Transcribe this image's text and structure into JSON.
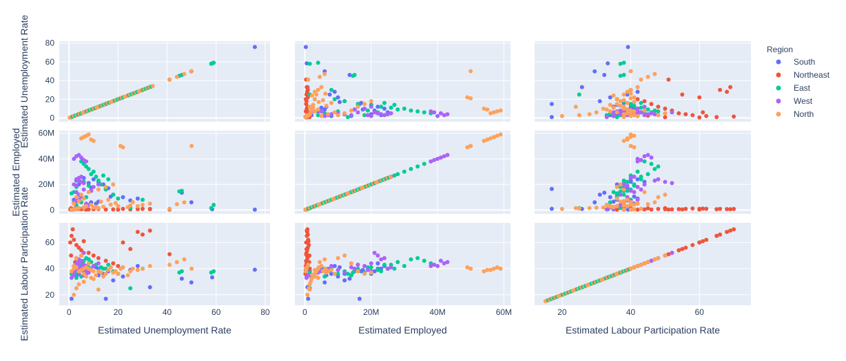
{
  "chart_data": {
    "type": "scatter",
    "subtype": "scatter-matrix",
    "dimensions": [
      "Estimated Unemployment Rate",
      "Estimated Employed",
      "Estimated Labour Participation Rate"
    ],
    "axis_ranges": [
      [
        -4,
        82
      ],
      [
        -3000000,
        62000000
      ],
      [
        12,
        75
      ]
    ],
    "axis_ticks": [
      {
        "values": [
          0,
          20,
          40,
          60,
          80
        ],
        "labels": [
          "0",
          "20",
          "40",
          "60",
          "80"
        ]
      },
      {
        "values": [
          0,
          20000000,
          40000000,
          60000000
        ],
        "labels": [
          "0",
          "20M",
          "40M",
          "60M"
        ]
      },
      {
        "values": [
          20,
          40,
          60
        ],
        "labels": [
          "20",
          "40",
          "60"
        ]
      }
    ],
    "grid": true,
    "legend": {
      "title": "Region",
      "placement": "right"
    },
    "series": [
      {
        "name": "South",
        "color": "#636efa",
        "points": [
          [
            75.8,
            300000.0,
            39.2
          ],
          [
            58.4,
            600000.0,
            33.3
          ],
          [
            49.9,
            6000000.0,
            29.5
          ],
          [
            46,
            13500000.0,
            32.3
          ],
          [
            33,
            800000.0,
            25.8
          ],
          [
            22,
            10000000.0,
            34
          ],
          [
            18,
            12000000.0,
            31
          ],
          [
            16,
            17000000.0,
            38
          ],
          [
            14,
            20000000.0,
            36
          ],
          [
            12,
            22000000.0,
            40
          ],
          [
            10,
            24000000.0,
            42
          ],
          [
            8,
            21000000.0,
            38
          ],
          [
            6,
            25000000.0,
            40
          ],
          [
            5,
            22000000.0,
            44
          ],
          [
            4,
            20000000.0,
            38
          ],
          [
            3,
            23000000.0,
            40
          ],
          [
            2,
            8000000.0,
            36
          ],
          [
            1,
            1000000.0,
            17
          ],
          [
            2,
            500000.0,
            35
          ],
          [
            3,
            2000000.0,
            34
          ],
          [
            7,
            4000000.0,
            37
          ],
          [
            9,
            6000000.0,
            40
          ],
          [
            11,
            5000000.0,
            41
          ],
          [
            15,
            16500000.0,
            17
          ],
          [
            20,
            3000000.0,
            36
          ],
          [
            25,
            7500000.0,
            39
          ],
          [
            28,
            9000000.0,
            42
          ],
          [
            6,
            1500000.0,
            38
          ],
          [
            4,
            12000000.0,
            36
          ],
          [
            9,
            17500000.0,
            39
          ],
          [
            12,
            6500000.0,
            35
          ],
          [
            17,
            10500000.0,
            41
          ]
        ]
      },
      {
        "name": "Northeast",
        "color": "#ef553b",
        "points": [
          [
            0.5,
            400000.0,
            60
          ],
          [
            1,
            600000.0,
            65
          ],
          [
            1.5,
            800000.0,
            70
          ],
          [
            2,
            1000000.0,
            62
          ],
          [
            3,
            1200000.0,
            58
          ],
          [
            4,
            900000.0,
            56
          ],
          [
            5,
            700000.0,
            54
          ],
          [
            6,
            1100000.0,
            61
          ],
          [
            8,
            500000.0,
            52
          ],
          [
            10,
            600000.0,
            50
          ],
          [
            12,
            800000.0,
            48
          ],
          [
            15,
            400000.0,
            46
          ],
          [
            20,
            300000.0,
            42
          ],
          [
            25,
            500000.0,
            55
          ],
          [
            28,
            700000.0,
            68
          ],
          [
            30,
            900000.0,
            66
          ],
          [
            33,
            600000.0,
            69
          ],
          [
            41,
            400000.0,
            51
          ],
          [
            2.5,
            1300000.0,
            45
          ],
          [
            3.5,
            1500000.0,
            40
          ],
          [
            7,
            300000.0,
            38
          ],
          [
            1.2,
            200000.0,
            36
          ],
          [
            0.8,
            1400000.0,
            50
          ],
          [
            18,
            500000.0,
            44
          ],
          [
            22,
            900000.0,
            60
          ]
        ]
      },
      {
        "name": "East",
        "color": "#00cc96",
        "points": [
          [
            59,
            4000000.0,
            38
          ],
          [
            58,
            1500000.0,
            37
          ],
          [
            46,
            15000000.0,
            38
          ],
          [
            45,
            14500000.0,
            37
          ],
          [
            30,
            8000000.0,
            40
          ],
          [
            25,
            1500000.0,
            25
          ],
          [
            20,
            9000000.0,
            36
          ],
          [
            18,
            12000000.0,
            38
          ],
          [
            15,
            16000000.0,
            40
          ],
          [
            13,
            20000000.0,
            41
          ],
          [
            11,
            26000000.0,
            43
          ],
          [
            9,
            28000000.0,
            45
          ],
          [
            8,
            32000000.0,
            47
          ],
          [
            7,
            34000000.0,
            48
          ],
          [
            6,
            36000000.0,
            46
          ],
          [
            5,
            38000000.0,
            44
          ],
          [
            4,
            25000000.0,
            40
          ],
          [
            3,
            18000000.0,
            37
          ],
          [
            2,
            14000000.0,
            35
          ],
          [
            1,
            13000000.0,
            36
          ],
          [
            6,
            22000000.0,
            39
          ],
          [
            10,
            30000000.0,
            42
          ],
          [
            14,
            27000000.0,
            40
          ],
          [
            12,
            23000000.0,
            38
          ],
          [
            8,
            19000000.0,
            41
          ],
          [
            16,
            24000000.0,
            43
          ],
          [
            9,
            15000000.0,
            39
          ],
          [
            7,
            10000000.0,
            36
          ],
          [
            5,
            6000000.0,
            34
          ],
          [
            3,
            4000000.0,
            33
          ]
        ]
      },
      {
        "name": "West",
        "color": "#ab63fa",
        "points": [
          [
            2,
            40000000.0,
            42
          ],
          [
            3,
            42000000.0,
            44
          ],
          [
            4,
            43000000.0,
            45
          ],
          [
            5,
            41000000.0,
            46
          ],
          [
            6,
            39000000.0,
            43
          ],
          [
            7,
            38000000.0,
            42
          ],
          [
            3,
            24000000.0,
            48
          ],
          [
            4,
            23000000.0,
            47
          ],
          [
            5,
            22000000.0,
            50
          ],
          [
            6,
            21000000.0,
            52
          ],
          [
            2,
            20000000.0,
            38
          ],
          [
            3,
            19000000.0,
            39
          ],
          [
            4,
            25000000.0,
            40
          ],
          [
            5,
            26000000.0,
            41
          ],
          [
            6,
            2000000.0,
            35
          ],
          [
            7,
            3000000.0,
            36
          ],
          [
            8,
            4000000.0,
            37
          ],
          [
            2,
            6000000.0,
            38
          ],
          [
            3,
            7000000.0,
            40
          ],
          [
            4,
            8000000.0,
            42
          ],
          [
            1,
            500000.0,
            33
          ],
          [
            2,
            1000000.0,
            35
          ],
          [
            9,
            15000000.0,
            40
          ],
          [
            10,
            18000000.0,
            42
          ],
          [
            12,
            20000000.0,
            44
          ],
          [
            5,
            10000000.0,
            39
          ],
          [
            4,
            12000000.0,
            37
          ],
          [
            3,
            14000000.0,
            41
          ],
          [
            6,
            16000000.0,
            43
          ],
          [
            7,
            5000000.0,
            38
          ]
        ]
      },
      {
        "name": "North",
        "color": "#fea15a",
        "points": [
          [
            2,
            800000.0,
            20
          ],
          [
            3,
            1200000.0,
            25
          ],
          [
            4,
            1500000.0,
            28
          ],
          [
            6,
            1800000.0,
            30
          ],
          [
            10,
            2000000.0,
            32
          ],
          [
            14,
            2500000.0,
            34
          ],
          [
            20,
            3000000.0,
            36
          ],
          [
            25,
            3500000.0,
            38
          ],
          [
            30,
            4000000.0,
            40
          ],
          [
            33,
            5000000.0,
            42
          ],
          [
            41,
            1000000.0,
            43
          ],
          [
            44,
            4500000.0,
            45
          ],
          [
            47,
            6000000.0,
            47
          ],
          [
            50,
            50000000.0,
            40
          ],
          [
            5,
            56000000.0,
            39
          ],
          [
            6,
            57000000.0,
            40
          ],
          [
            7,
            58000000.0,
            41
          ],
          [
            8,
            59000000.0,
            40
          ],
          [
            9,
            55000000.0,
            39
          ],
          [
            10,
            54000000.0,
            38
          ],
          [
            21,
            50000000.0,
            40
          ],
          [
            22,
            49000000.0,
            41
          ],
          [
            3,
            10000000.0,
            48
          ],
          [
            5,
            12000000.0,
            50
          ],
          [
            8,
            14000000.0,
            44
          ],
          [
            12,
            16000000.0,
            38
          ],
          [
            15,
            18000000.0,
            36
          ],
          [
            18,
            20000000.0,
            37
          ],
          [
            2,
            5000000.0,
            42
          ],
          [
            4,
            7000000.0,
            38
          ],
          [
            6,
            9000000.0,
            36
          ],
          [
            7,
            3000000.0,
            34
          ],
          [
            9,
            4000000.0,
            33
          ],
          [
            11,
            2500000.0,
            35
          ],
          [
            13,
            6500000.0,
            37
          ],
          [
            16,
            8000000.0,
            39
          ],
          [
            1,
            300000.0,
            38
          ],
          [
            2,
            400000.0,
            40
          ],
          [
            3,
            600000.0,
            41
          ],
          [
            12,
            1500000.0,
            24
          ],
          [
            24,
            2200000.0,
            35
          ],
          [
            28,
            3000000.0,
            39
          ],
          [
            17,
            4200000.0,
            41
          ],
          [
            19,
            5500000.0,
            38
          ],
          [
            26,
            6200000.0,
            40
          ]
        ]
      }
    ]
  }
}
